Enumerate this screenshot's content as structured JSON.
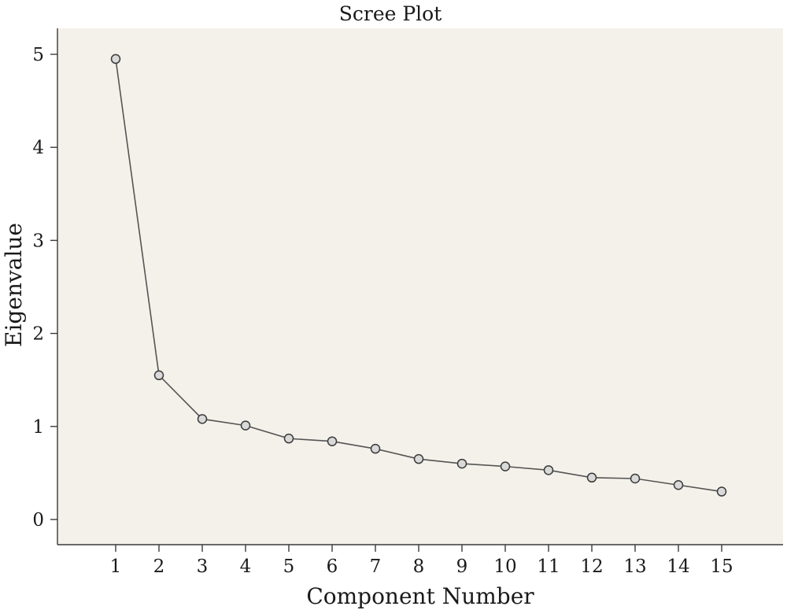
{
  "chart_data": {
    "type": "line",
    "title": "Scree Plot",
    "xlabel": "Component Number",
    "ylabel": "Eigenvalue",
    "x": [
      1,
      2,
      3,
      4,
      5,
      6,
      7,
      8,
      9,
      10,
      11,
      12,
      13,
      14,
      15
    ],
    "series": [
      {
        "values": [
          4.95,
          1.55,
          1.08,
          1.01,
          0.87,
          0.84,
          0.76,
          0.65,
          0.6,
          0.57,
          0.53,
          0.45,
          0.44,
          0.37,
          0.3
        ]
      }
    ],
    "xticks": [
      "1",
      "2",
      "3",
      "4",
      "5",
      "6",
      "7",
      "8",
      "9",
      "10",
      "11",
      "12",
      "13",
      "14",
      "15"
    ],
    "yticks": [
      "0",
      "1",
      "2",
      "3",
      "4",
      "5"
    ],
    "ylim": [
      0,
      5
    ],
    "grid": false,
    "legend": "none",
    "colors": {
      "plot_background": "#f4f1ea",
      "line": "#555555",
      "marker_fill": "#d9d9d9",
      "marker_stroke": "#3a3a3a"
    }
  }
}
